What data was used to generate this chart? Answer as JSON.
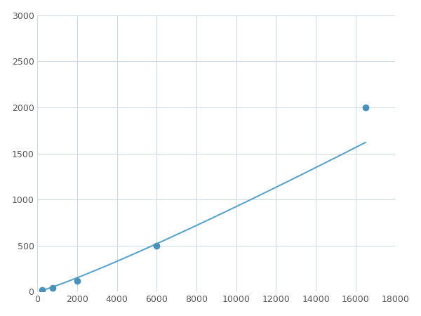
{
  "x_data": [
    250,
    750,
    2000,
    6000,
    16500
  ],
  "y_data": [
    20,
    40,
    120,
    500,
    2000
  ],
  "line_color": "#5ba3c9",
  "marker_color": "#4a90b8",
  "marker_size": 7,
  "xlim": [
    0,
    18000
  ],
  "ylim": [
    0,
    3000
  ],
  "xticks": [
    0,
    2000,
    4000,
    6000,
    8000,
    10000,
    12000,
    14000,
    16000,
    18000
  ],
  "yticks": [
    0,
    500,
    1000,
    1500,
    2000,
    2500,
    3000
  ],
  "grid_color": "#d0d8e0",
  "background_color": "#ffffff",
  "figsize": [
    6.0,
    4.5
  ],
  "dpi": 100
}
